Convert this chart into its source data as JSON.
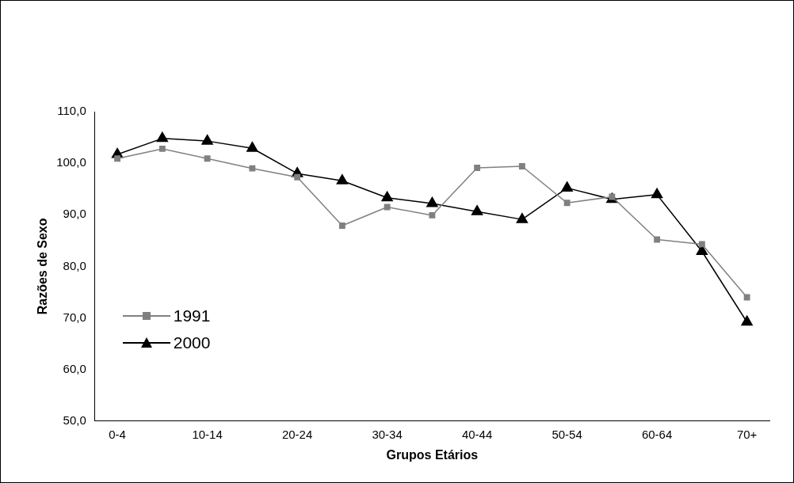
{
  "chart_data": {
    "type": "line",
    "xlabel": "Grupos Etários",
    "ylabel": "Razões de Sexo",
    "categories": [
      "0-4",
      null,
      "10-14",
      null,
      "20-24",
      null,
      "30-34",
      null,
      "40-44",
      null,
      "50-54",
      null,
      "60-64",
      null,
      "70+"
    ],
    "series": [
      {
        "name": "1991",
        "color": "#808080",
        "marker": "square",
        "values": [
          100.9,
          102.8,
          100.9,
          99.0,
          97.3,
          87.9,
          91.5,
          89.9,
          99.1,
          99.4,
          92.3,
          93.5,
          85.2,
          84.3,
          74.0
        ]
      },
      {
        "name": "2000",
        "color": "#000000",
        "marker": "triangle",
        "values": [
          101.7,
          104.8,
          104.3,
          102.9,
          98.0,
          96.6,
          93.3,
          92.2,
          90.6,
          89.1,
          95.2,
          93.0,
          93.9,
          82.9,
          69.2
        ]
      }
    ],
    "ylim": [
      50,
      110
    ],
    "yticks": [
      {
        "value": 50,
        "label": "50,0"
      },
      {
        "value": 60,
        "label": "60,0"
      },
      {
        "value": 70,
        "label": "70,0"
      },
      {
        "value": 80,
        "label": "80,0"
      },
      {
        "value": 90,
        "label": "90,0"
      },
      {
        "value": 100,
        "label": "100,0"
      },
      {
        "value": 110,
        "label": "110,0"
      }
    ],
    "grid": false,
    "legend": "bottom left",
    "line_style": "solid"
  }
}
